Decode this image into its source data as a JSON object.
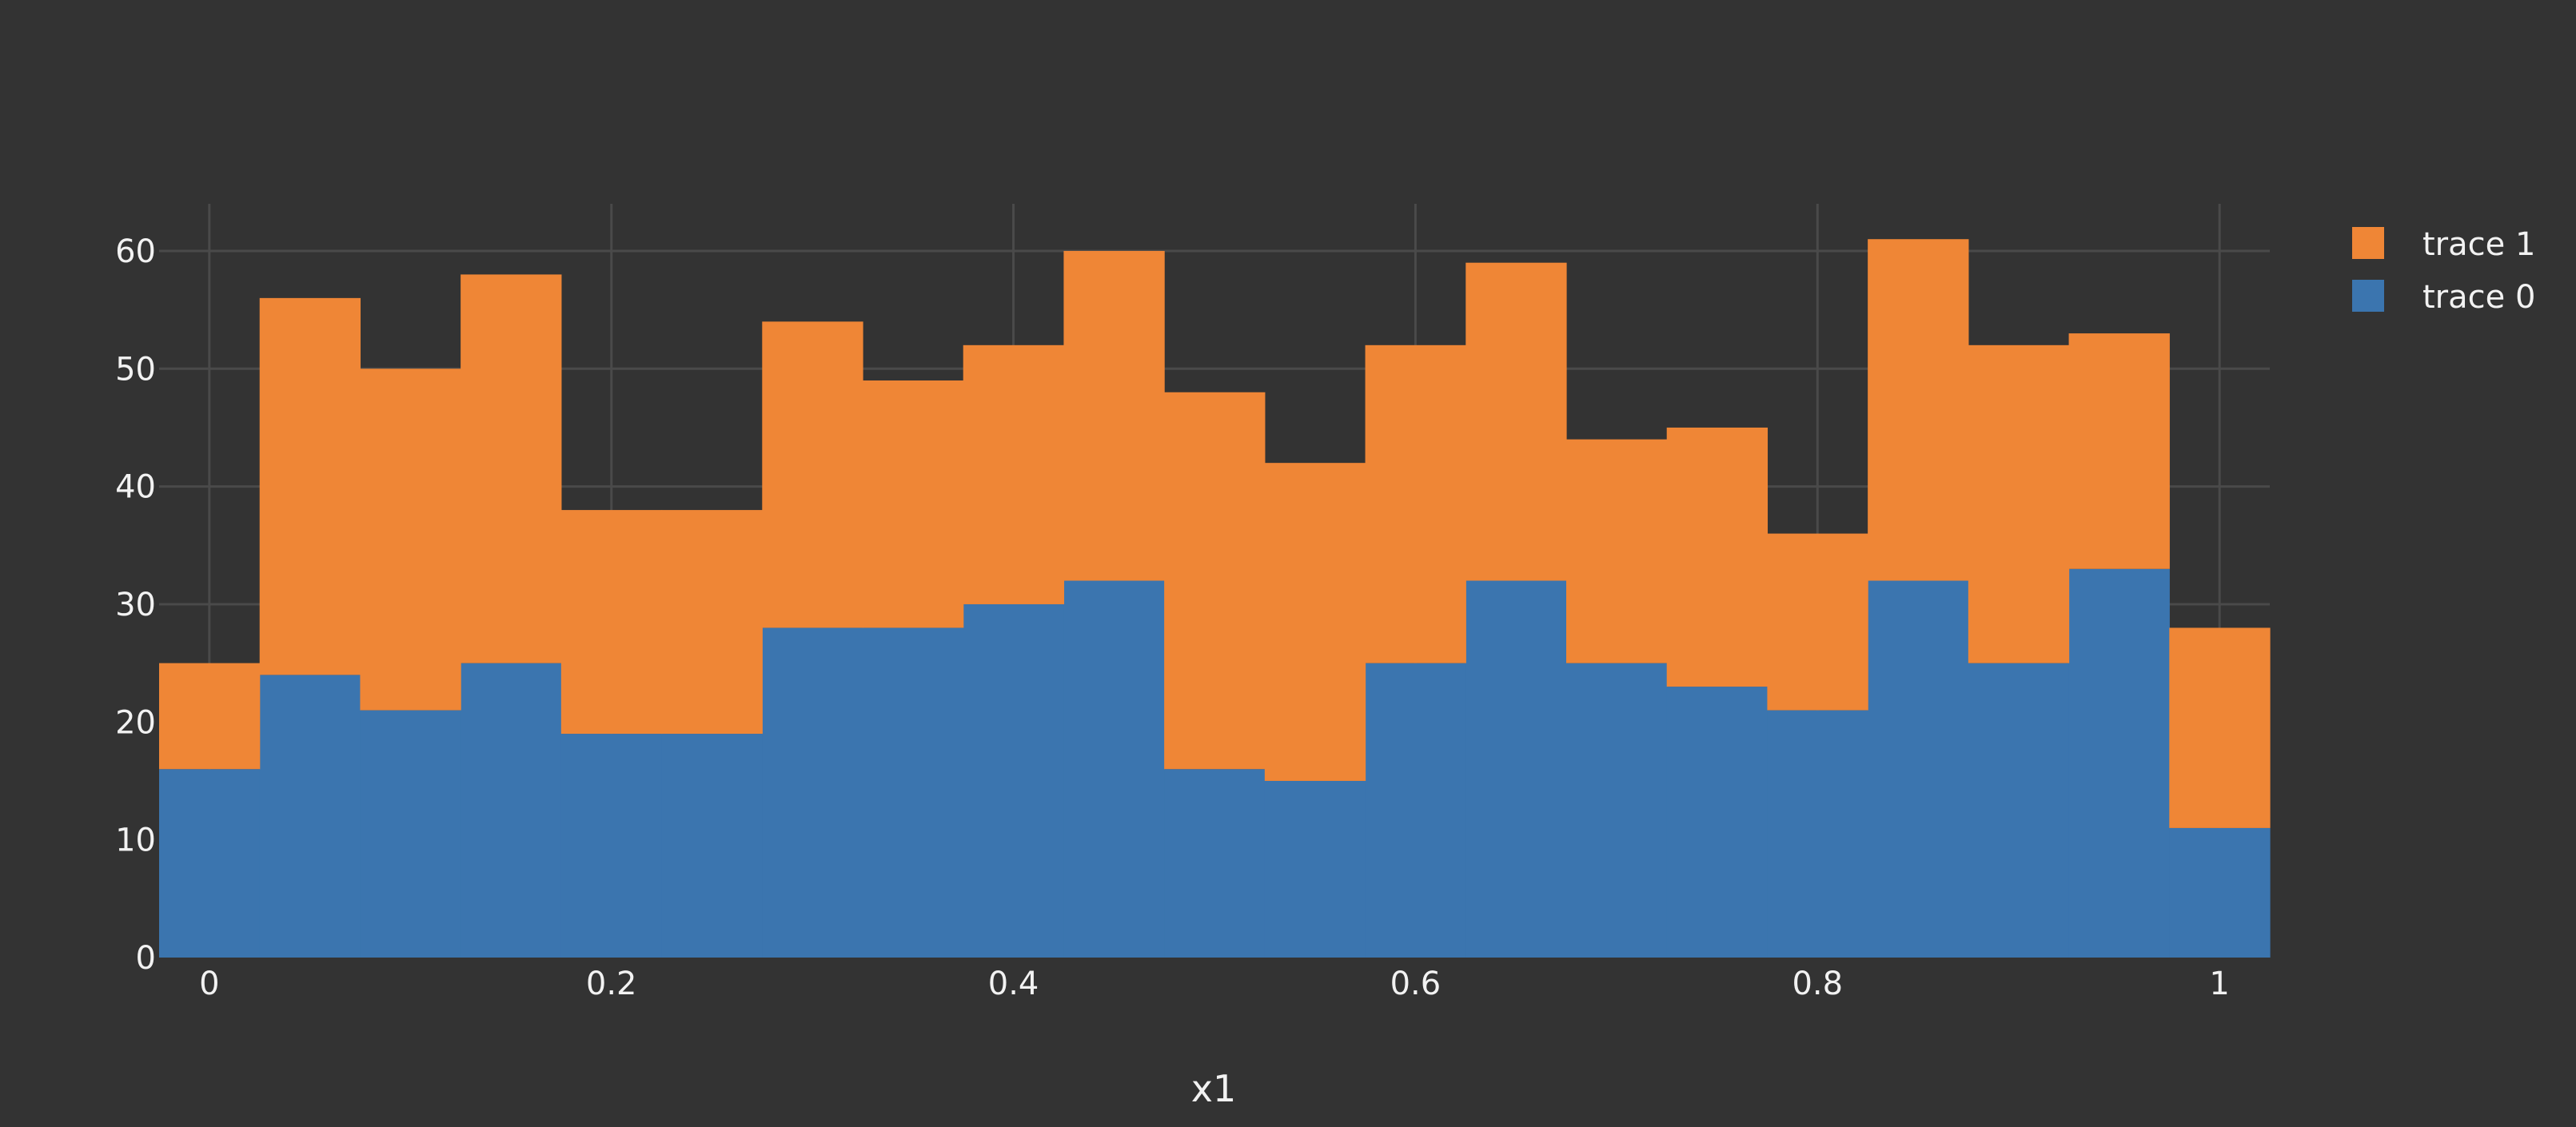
{
  "chart_data": {
    "type": "bar",
    "barmode": "stack",
    "bin_start": -0.025,
    "bin_width": 0.05,
    "xlabel": "x1",
    "ylabel": "",
    "title": "",
    "xlim": [
      -0.025,
      1.025
    ],
    "ylim": [
      0,
      64
    ],
    "x_ticks": [
      0,
      0.2,
      0.4,
      0.6,
      0.8,
      1
    ],
    "x_tick_labels": [
      "0",
      "0.2",
      "0.4",
      "0.6",
      "0.8",
      "1"
    ],
    "y_ticks": [
      0,
      10,
      20,
      30,
      40,
      50,
      60
    ],
    "y_tick_labels": [
      "0",
      "10",
      "20",
      "30",
      "40",
      "50",
      "60"
    ],
    "grid": true,
    "legend_position": "top-right",
    "legend_order": [
      "trace 1",
      "trace 0"
    ],
    "series": [
      {
        "name": "trace 0",
        "color": "#3b75af",
        "values": [
          16,
          24,
          21,
          25,
          19,
          19,
          28,
          28,
          30,
          32,
          16,
          15,
          25,
          32,
          25,
          23,
          21,
          32,
          25,
          33,
          11
        ]
      },
      {
        "name": "trace 1",
        "color": "#ef8636",
        "values": [
          9,
          32,
          29,
          33,
          19,
          19,
          26,
          21,
          22,
          28,
          32,
          27,
          27,
          27,
          19,
          22,
          15,
          29,
          27,
          20,
          17
        ]
      }
    ]
  }
}
